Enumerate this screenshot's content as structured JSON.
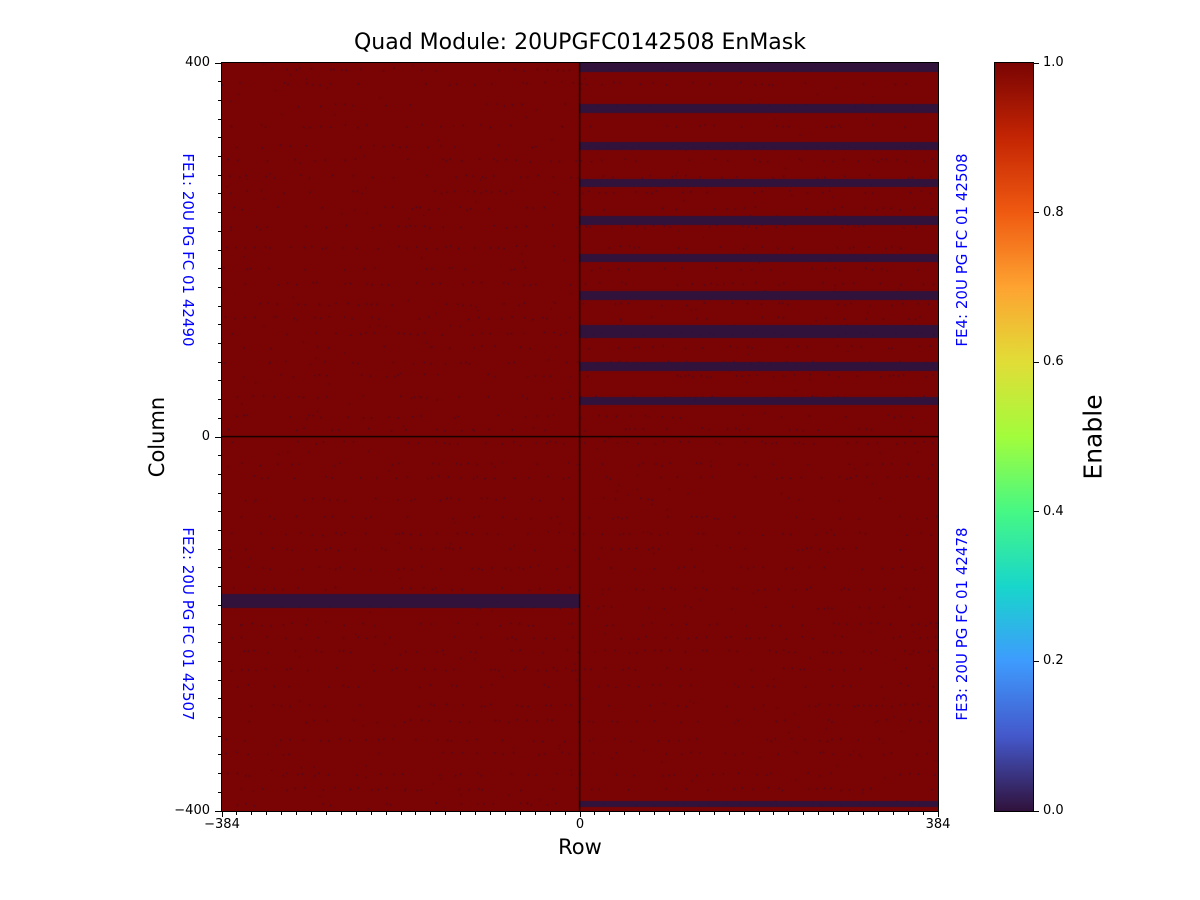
{
  "chart_data": {
    "type": "heatmap",
    "title": "Quad Module: 20UPGFC0142508 EnMask",
    "xlabel": "Row",
    "ylabel": "Column",
    "colorbar_label": "Enable",
    "colormap": "turbo",
    "grid": false,
    "xlim": [
      -384,
      384
    ],
    "ylim": [
      -400,
      400
    ],
    "value_range": [
      0,
      1
    ],
    "base_value": 1,
    "xticks": [
      {
        "value": -384,
        "label": "−384"
      },
      {
        "value": 0,
        "label": "0"
      },
      {
        "value": 384,
        "label": "384"
      }
    ],
    "yticks": [
      {
        "value": -400,
        "label": "−400"
      },
      {
        "value": 0,
        "label": "0"
      },
      {
        "value": 400,
        "label": "400"
      }
    ],
    "minor_tick_step": {
      "x": 16,
      "y": 20
    },
    "colorbar_ticks": [
      {
        "value": 0.0,
        "label": "0.0"
      },
      {
        "value": 0.2,
        "label": "0.2"
      },
      {
        "value": 0.4,
        "label": "0.4"
      },
      {
        "value": 0.6,
        "label": "0.6"
      },
      {
        "value": 0.8,
        "label": "0.8"
      },
      {
        "value": 1.0,
        "label": "1.0"
      }
    ],
    "colormap_stops": [
      {
        "pos": 0.0,
        "color": "#30123b"
      },
      {
        "pos": 0.1,
        "color": "#4458cb"
      },
      {
        "pos": 0.2,
        "color": "#3e9bfe"
      },
      {
        "pos": 0.3,
        "color": "#18d6cb"
      },
      {
        "pos": 0.4,
        "color": "#46f884"
      },
      {
        "pos": 0.5,
        "color": "#a2fc3c"
      },
      {
        "pos": 0.6,
        "color": "#e1dd37"
      },
      {
        "pos": 0.7,
        "color": "#fea331"
      },
      {
        "pos": 0.8,
        "color": "#ef5a11"
      },
      {
        "pos": 0.9,
        "color": "#c42503"
      },
      {
        "pos": 1.0,
        "color": "#7a0403"
      }
    ],
    "colors": {
      "enabled": "#7a0403",
      "disabled": "#30123b",
      "fe_label": "#0000ff",
      "axis": "#000000"
    },
    "fe_labels": [
      {
        "id": "FE1",
        "label": "FE1: 20U PG FC 01 42490",
        "side": "left",
        "half": "top"
      },
      {
        "id": "FE2",
        "label": "FE2: 20U PG FC 01 42507",
        "side": "left",
        "half": "bottom"
      },
      {
        "id": "FE4",
        "label": "FE4: 20U PG FC 01 42508",
        "side": "right",
        "half": "top"
      },
      {
        "id": "FE3",
        "label": "FE3: 20U PG FC 01 42478",
        "side": "right",
        "half": "bottom"
      }
    ],
    "quadrant_dividers": {
      "x": 0,
      "y": 0
    },
    "disabled_regions": [
      {
        "fe": "FE4",
        "rows": [
          0,
          384
        ],
        "cols": [
          390,
          400
        ]
      },
      {
        "fe": "FE4",
        "rows": [
          0,
          384
        ],
        "cols": [
          347,
          356
        ]
      },
      {
        "fe": "FE4",
        "rows": [
          0,
          384
        ],
        "cols": [
          307,
          316
        ]
      },
      {
        "fe": "FE4",
        "rows": [
          0,
          384
        ],
        "cols": [
          267,
          276
        ]
      },
      {
        "fe": "FE4",
        "rows": [
          0,
          384
        ],
        "cols": [
          227,
          236
        ]
      },
      {
        "fe": "FE4",
        "rows": [
          0,
          384
        ],
        "cols": [
          187,
          196
        ]
      },
      {
        "fe": "FE4",
        "rows": [
          0,
          384
        ],
        "cols": [
          147,
          156
        ]
      },
      {
        "fe": "FE4",
        "rows": [
          0,
          384
        ],
        "cols": [
          106,
          120
        ]
      },
      {
        "fe": "FE4",
        "rows": [
          0,
          384
        ],
        "cols": [
          71,
          80
        ]
      },
      {
        "fe": "FE4",
        "rows": [
          0,
          384
        ],
        "cols": [
          34,
          43
        ]
      },
      {
        "fe": "FE2",
        "rows": [
          -384,
          0
        ],
        "cols": [
          -183,
          -168
        ]
      },
      {
        "fe": "FE3",
        "rows": [
          0,
          384
        ],
        "cols": [
          -396,
          -389
        ]
      }
    ],
    "noise": {
      "seed": 42,
      "color": "#30123b",
      "style": "sparse-dot-rows"
    }
  }
}
